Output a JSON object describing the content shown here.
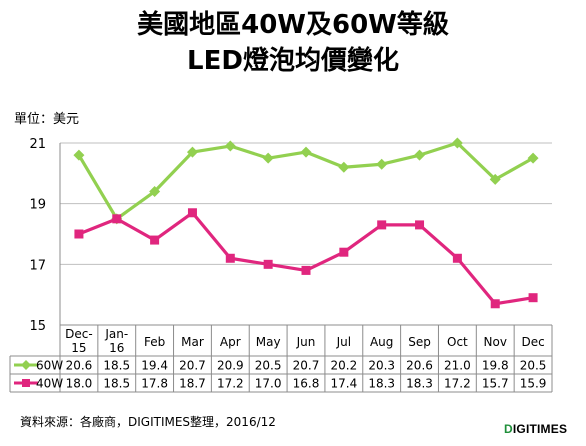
{
  "chart_data": {
    "type": "line",
    "title": "美國地區40W及60W等級",
    "subtitle": "LED燈泡均價變化",
    "ylabel": "單位：美元",
    "xlabel": "",
    "ylim": [
      15,
      21
    ],
    "yticks": [
      15,
      17,
      19,
      21
    ],
    "grid": true,
    "legend": "data-table-bottom",
    "categories": [
      "Dec-15",
      "Jan-16",
      "Feb",
      "Mar",
      "Apr",
      "May",
      "Jun",
      "Jul",
      "Aug",
      "Sep",
      "Oct",
      "Nov",
      "Dec"
    ],
    "category_lines": [
      [
        "Dec-",
        "15"
      ],
      [
        "Jan-",
        "16"
      ],
      [
        "Feb"
      ],
      [
        "Mar"
      ],
      [
        "Apr"
      ],
      [
        "May"
      ],
      [
        "Jun"
      ],
      [
        "Jul"
      ],
      [
        "Aug"
      ],
      [
        "Sep"
      ],
      [
        "Oct"
      ],
      [
        "Nov"
      ],
      [
        "Dec"
      ]
    ],
    "series": [
      {
        "name": "60W",
        "color": "#92d050",
        "marker": "diamond",
        "values": [
          20.6,
          18.5,
          19.4,
          20.7,
          20.9,
          20.5,
          20.7,
          20.2,
          20.3,
          20.6,
          21.0,
          19.8,
          20.5
        ],
        "labels": [
          "20.6",
          "18.5",
          "19.4",
          "20.7",
          "20.9",
          "20.5",
          "20.7",
          "20.2",
          "20.3",
          "20.6",
          "21.0",
          "19.8",
          "20.5"
        ]
      },
      {
        "name": "40W",
        "color": "#e0267e",
        "marker": "square",
        "values": [
          18.0,
          18.5,
          17.8,
          18.7,
          17.2,
          17.0,
          16.8,
          17.4,
          18.3,
          18.3,
          17.2,
          15.7,
          15.9
        ],
        "labels": [
          "18.0",
          "18.5",
          "17.8",
          "18.7",
          "17.2",
          "17.0",
          "16.8",
          "17.4",
          "18.3",
          "18.3",
          "17.2",
          "15.7",
          "15.9"
        ]
      }
    ]
  },
  "footer": {
    "source": "資料來源：各廠商，DIGITIMES整理，2016/12",
    "brand_mark": "D",
    "brand_rest": "IGITIMES"
  }
}
